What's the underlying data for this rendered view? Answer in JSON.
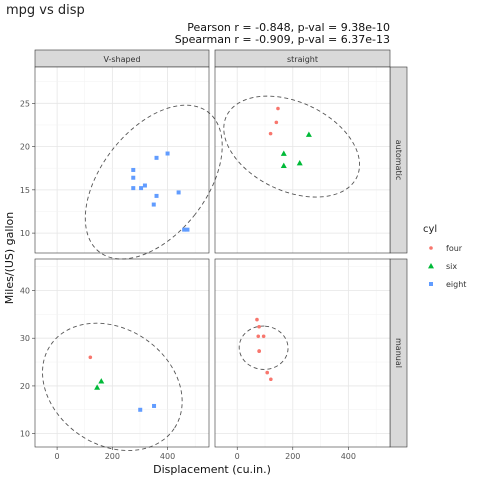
{
  "chart_data": {
    "type": "scatter",
    "title": "mpg vs disp",
    "subtitle_lines": [
      "Pearson r = -0.848, p-val = 9.38e-10",
      "Spearman r = -0.909, p-val = 6.37e-13"
    ],
    "xlabel": "Displacement (cu.in.)",
    "ylabel": "Miles/(US) gallon",
    "grid": true,
    "legend_placement": "right",
    "legend": {
      "title": "cyl",
      "entries": [
        {
          "label": "four",
          "color": "#F8766D",
          "shape": "circle"
        },
        {
          "label": "six",
          "color": "#00BA38",
          "shape": "triangle"
        },
        {
          "label": "eight",
          "color": "#619CFF",
          "shape": "square"
        }
      ]
    },
    "x_ticks": [
      0,
      200,
      400
    ],
    "xlim": [
      -80,
      550
    ],
    "row_strips": [
      "automatic",
      "manual"
    ],
    "col_strips": [
      "V-shaped",
      "straight"
    ],
    "panel_rows": [
      {
        "ylim": [
          7.7,
          29.2
        ],
        "y_ticks": [
          10,
          15,
          20,
          25
        ]
      },
      {
        "ylim": [
          7.2,
          46.6
        ],
        "y_ticks": [
          10,
          20,
          30,
          40
        ]
      }
    ],
    "panels": [
      {
        "row": 0,
        "col": 0,
        "ellipse": {
          "cx": 350,
          "cy": 15.9,
          "rx": 190,
          "ry": 3.2,
          "angle": 38
        },
        "points": [
          {
            "x": 275.8,
            "y": 17.3,
            "cyl": "eight"
          },
          {
            "x": 275.8,
            "y": 16.4,
            "cyl": "eight"
          },
          {
            "x": 275.8,
            "y": 15.2,
            "cyl": "eight"
          },
          {
            "x": 304,
            "y": 15.2,
            "cyl": "eight"
          },
          {
            "x": 318,
            "y": 15.5,
            "cyl": "eight"
          },
          {
            "x": 350,
            "y": 13.3,
            "cyl": "eight"
          },
          {
            "x": 360,
            "y": 18.7,
            "cyl": "eight"
          },
          {
            "x": 360,
            "y": 14.3,
            "cyl": "eight"
          },
          {
            "x": 400,
            "y": 19.2,
            "cyl": "eight"
          },
          {
            "x": 440,
            "y": 14.7,
            "cyl": "eight"
          },
          {
            "x": 460,
            "y": 10.4,
            "cyl": "eight"
          },
          {
            "x": 472,
            "y": 10.4,
            "cyl": "eight"
          }
        ]
      },
      {
        "row": 0,
        "col": 1,
        "ellipse": {
          "cx": 196,
          "cy": 20.0,
          "rx": 160,
          "ry": 2.6,
          "angle": -65
        },
        "points": [
          {
            "x": 146.7,
            "y": 24.4,
            "cyl": "four"
          },
          {
            "x": 140.8,
            "y": 22.8,
            "cyl": "four"
          },
          {
            "x": 120.1,
            "y": 21.5,
            "cyl": "four"
          },
          {
            "x": 258,
            "y": 21.4,
            "cyl": "six"
          },
          {
            "x": 167.6,
            "y": 19.2,
            "cyl": "six"
          },
          {
            "x": 225,
            "y": 18.1,
            "cyl": "six"
          },
          {
            "x": 167.6,
            "y": 17.8,
            "cyl": "six"
          }
        ]
      },
      {
        "row": 1,
        "col": 0,
        "ellipse": {
          "cx": 200,
          "cy": 19.8,
          "rx": 270,
          "ry": 3.8,
          "angle": 34
        },
        "points": [
          {
            "x": 120.3,
            "y": 26.0,
            "cyl": "four"
          },
          {
            "x": 160,
            "y": 21.0,
            "cyl": "six"
          },
          {
            "x": 145,
            "y": 19.7,
            "cyl": "six"
          },
          {
            "x": 301,
            "y": 15.0,
            "cyl": "eight"
          },
          {
            "x": 351,
            "y": 15.8,
            "cyl": "eight"
          }
        ]
      },
      {
        "row": 1,
        "col": 1,
        "ellipse": {
          "cx": 95,
          "cy": 28.0,
          "rx": 78,
          "ry": 1.6,
          "angle": -86
        },
        "points": [
          {
            "x": 78.7,
            "y": 32.4,
            "cyl": "four"
          },
          {
            "x": 75.7,
            "y": 30.4,
            "cyl": "four"
          },
          {
            "x": 71.1,
            "y": 33.9,
            "cyl": "four"
          },
          {
            "x": 79,
            "y": 27.3,
            "cyl": "four"
          },
          {
            "x": 95.1,
            "y": 30.4,
            "cyl": "four"
          },
          {
            "x": 108,
            "y": 22.8,
            "cyl": "four"
          },
          {
            "x": 121,
            "y": 21.4,
            "cyl": "four"
          },
          {
            "x": 79,
            "y": 27.3,
            "cyl": "four"
          }
        ]
      }
    ]
  }
}
